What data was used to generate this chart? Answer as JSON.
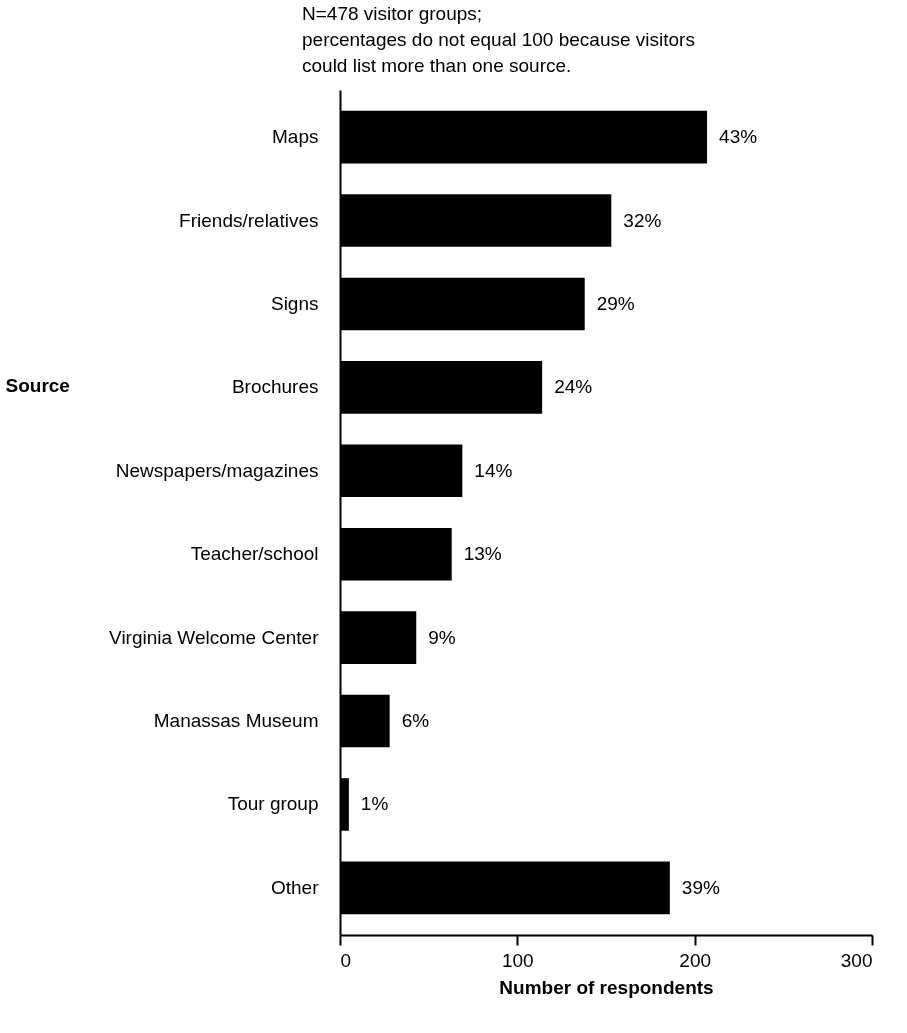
{
  "chart_data": {
    "type": "bar",
    "orientation": "horizontal",
    "categories": [
      "Maps",
      "Friends/relatives",
      "Signs",
      "Brochures",
      "Newspapers/magazines",
      "Teacher/school",
      "Virginia Welcome Center",
      "Manassas Museum",
      "Tour group",
      "Other"
    ],
    "values": [
      207,
      153,
      138,
      114,
      69,
      63,
      43,
      28,
      5,
      186
    ],
    "color": "#000000",
    "xlabel": "Number of respondents",
    "ylabel": "Source",
    "xlim": [
      0,
      300
    ],
    "xticks": [
      0,
      100,
      200,
      300
    ],
    "grid": false,
    "annotations": [
      "N=478 visitor groups;",
      "percentages do not equal 100 because visitors could list more than one source.",
      {
        "text": "43%",
        "x": 207,
        "y": "Maps"
      },
      {
        "text": "32%",
        "x": 153,
        "y": "Friends/relatives"
      },
      {
        "text": "29%",
        "x": 138,
        "y": "Signs"
      },
      {
        "text": "24%",
        "x": 114,
        "y": "Brochures"
      },
      {
        "text": "14%",
        "x": 69,
        "y": "Newspapers/magazines"
      },
      {
        "text": "13%",
        "x": 63,
        "y": "Teacher/school"
      },
      {
        "text": "9%",
        "x": 43,
        "y": "Virginia Welcome Center"
      },
      {
        "text": "6%",
        "x": 28,
        "y": "Manassas Museum"
      },
      {
        "text": "1%",
        "x": 5,
        "y": "Tour group"
      },
      {
        "text": "39%",
        "x": 186,
        "y": "Other"
      }
    ]
  }
}
